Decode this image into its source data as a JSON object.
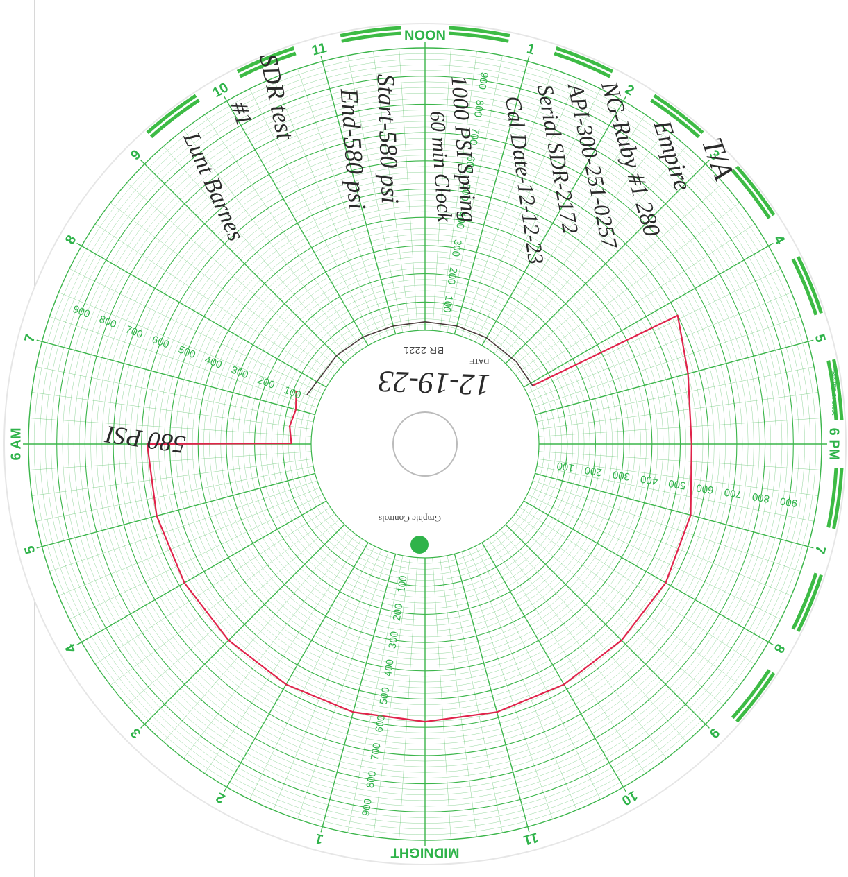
{
  "chart_data": {
    "type": "circular",
    "xlim": [
      0,
      24
    ],
    "ylim": [
      0,
      1000
    ],
    "xticks": [
      {
        "value": 0,
        "label": "MIDNIGHT"
      },
      1,
      2,
      3,
      4,
      5,
      {
        "value": 6,
        "label": "6 AM"
      },
      7,
      8,
      9,
      10,
      11,
      {
        "value": 12,
        "label": "NOON"
      },
      {
        "value": 13,
        "label": "1"
      },
      {
        "value": 14,
        "label": "2"
      },
      {
        "value": 15,
        "label": "3"
      },
      {
        "value": 16,
        "label": "4"
      },
      {
        "value": 17,
        "label": "5"
      },
      {
        "value": 18,
        "label": "6 PM"
      },
      {
        "value": 19,
        "label": "7"
      },
      {
        "value": 20,
        "label": "8"
      },
      {
        "value": 21,
        "label": "9"
      },
      {
        "value": 22,
        "label": "10"
      },
      {
        "value": 23,
        "label": "11"
      }
    ],
    "yticks": [
      100,
      200,
      300,
      400,
      500,
      600,
      700,
      800,
      900
    ],
    "grid": true,
    "grid_color": "#3bb54a",
    "series": [
      {
        "color": "#e0234a",
        "x": [
          16.1,
          16.2,
          16.5,
          17,
          18,
          19,
          20,
          21,
          22,
          23,
          0,
          1,
          2,
          3,
          4,
          5,
          6,
          6.02,
          6.5,
          7,
          7.5
        ],
        "values": [
          30,
          600,
          580,
          560,
          540,
          570,
          580,
          580,
          580,
          580,
          580,
          580,
          580,
          580,
          580,
          580,
          580,
          70,
          80,
          70,
          90
        ]
      },
      {
        "color": "#4a3a3a",
        "x": [
          7.5,
          9,
          10,
          11,
          12,
          13,
          14,
          15.2,
          16.1
        ],
        "values": [
          50,
          40,
          35,
          30,
          30,
          30,
          32,
          32,
          30
        ]
      }
    ]
  },
  "printed": {
    "date_label": "DATE",
    "chart_number": "BR 2221",
    "brand": "Graphic Controls",
    "imprint": "PRINTED IN U.S.A."
  },
  "handwriting": {
    "lines": [
      "T/A",
      "Empire",
      "NG-Ruby #1 280",
      "API-300-251-0257",
      "Serial SDR-2172",
      "Cal Date-12-12-23",
      "1000 PSI Spring",
      "60 min Clock",
      "Start-580 psi",
      "End-580 psi",
      "SDR test",
      "#1",
      "Lunt Barnes"
    ],
    "date": "12-19-23",
    "reading": "580 PSI"
  }
}
